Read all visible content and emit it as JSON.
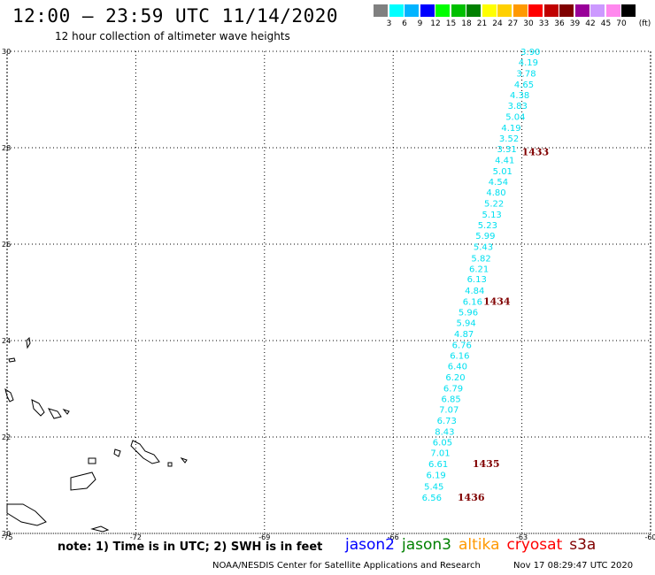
{
  "title": "12:00 — 23:59 UTC 11/14/2020",
  "subtitle": "12 hour collection of altimeter wave heights",
  "legend": {
    "unit": "(ft)",
    "bins": [
      {
        "label": "3",
        "color": "#808080"
      },
      {
        "label": "6",
        "color": "#00ffff"
      },
      {
        "label": "9",
        "color": "#00b4ff"
      },
      {
        "label": "12",
        "color": "#0000ff"
      },
      {
        "label": "15",
        "color": "#00ff00"
      },
      {
        "label": "18",
        "color": "#00c000"
      },
      {
        "label": "21",
        "color": "#008000"
      },
      {
        "label": "24",
        "color": "#ffff00"
      },
      {
        "label": "27",
        "color": "#ffd000"
      },
      {
        "label": "30",
        "color": "#ff9900"
      },
      {
        "label": "33",
        "color": "#ff0000"
      },
      {
        "label": "36",
        "color": "#c00000"
      },
      {
        "label": "39",
        "color": "#800000"
      },
      {
        "label": "42",
        "color": "#990099"
      },
      {
        "label": "45",
        "color": "#cc99ff"
      },
      {
        "label": "70",
        "color": "#ff88ee"
      },
      {
        "label": "",
        "color": "#000000"
      }
    ]
  },
  "chart_data": {
    "type": "scatter",
    "xlim": [
      -75,
      -60
    ],
    "ylim": [
      20,
      30
    ],
    "xticks": [
      "-75",
      "-72",
      "-69",
      "-66",
      "-63",
      "-60"
    ],
    "yticks": [
      "20",
      "22",
      "24",
      "26",
      "28",
      "30"
    ],
    "grid": true,
    "point_color": "#00e0f0",
    "time_color": "#800000",
    "points": [
      {
        "lon": -62.8,
        "lat": 30.0,
        "v": "3.90"
      },
      {
        "lon": -62.85,
        "lat": 29.78,
        "v": "4.19"
      },
      {
        "lon": -62.9,
        "lat": 29.55,
        "v": "3.78"
      },
      {
        "lon": -62.95,
        "lat": 29.32,
        "v": "4.65"
      },
      {
        "lon": -63.05,
        "lat": 29.1,
        "v": "4.38"
      },
      {
        "lon": -63.1,
        "lat": 28.88,
        "v": "3.83"
      },
      {
        "lon": -63.15,
        "lat": 28.65,
        "v": "5.04"
      },
      {
        "lon": -63.25,
        "lat": 28.42,
        "v": "4.19"
      },
      {
        "lon": -63.3,
        "lat": 28.2,
        "v": "3.52"
      },
      {
        "lon": -63.35,
        "lat": 27.98,
        "v": "3.31"
      },
      {
        "lon": -63.4,
        "lat": 27.75,
        "v": "4.41"
      },
      {
        "lon": -63.45,
        "lat": 27.52,
        "v": "5.01"
      },
      {
        "lon": -63.55,
        "lat": 27.3,
        "v": "4.54"
      },
      {
        "lon": -63.6,
        "lat": 27.08,
        "v": "4.80"
      },
      {
        "lon": -63.65,
        "lat": 26.85,
        "v": "5.22"
      },
      {
        "lon": -63.7,
        "lat": 26.62,
        "v": "5.13"
      },
      {
        "lon": -63.8,
        "lat": 26.4,
        "v": "5.23"
      },
      {
        "lon": -63.85,
        "lat": 26.18,
        "v": "5.99"
      },
      {
        "lon": -63.9,
        "lat": 25.95,
        "v": "5.43"
      },
      {
        "lon": -63.95,
        "lat": 25.72,
        "v": "5.82"
      },
      {
        "lon": -64.0,
        "lat": 25.5,
        "v": "6.21"
      },
      {
        "lon": -64.05,
        "lat": 25.28,
        "v": "6.13"
      },
      {
        "lon": -64.1,
        "lat": 25.05,
        "v": "4.84"
      },
      {
        "lon": -64.15,
        "lat": 24.82,
        "v": "6.16"
      },
      {
        "lon": -64.25,
        "lat": 24.6,
        "v": "5.96"
      },
      {
        "lon": -64.3,
        "lat": 24.38,
        "v": "5.94"
      },
      {
        "lon": -64.35,
        "lat": 24.15,
        "v": "4.87"
      },
      {
        "lon": -64.4,
        "lat": 23.92,
        "v": "6.76"
      },
      {
        "lon": -64.45,
        "lat": 23.7,
        "v": "6.16"
      },
      {
        "lon": -64.5,
        "lat": 23.48,
        "v": "6.40"
      },
      {
        "lon": -64.55,
        "lat": 23.25,
        "v": "6.20"
      },
      {
        "lon": -64.6,
        "lat": 23.02,
        "v": "6.79"
      },
      {
        "lon": -64.65,
        "lat": 22.8,
        "v": "6.85"
      },
      {
        "lon": -64.7,
        "lat": 22.58,
        "v": "7.07"
      },
      {
        "lon": -64.75,
        "lat": 22.35,
        "v": "6.73"
      },
      {
        "lon": -64.8,
        "lat": 22.12,
        "v": "8.43"
      },
      {
        "lon": -64.85,
        "lat": 21.9,
        "v": "6.05"
      },
      {
        "lon": -64.9,
        "lat": 21.68,
        "v": "7.01"
      },
      {
        "lon": -64.95,
        "lat": 21.45,
        "v": "6.61"
      },
      {
        "lon": -65.0,
        "lat": 21.22,
        "v": "6.19"
      },
      {
        "lon": -65.05,
        "lat": 20.98,
        "v": "5.45"
      },
      {
        "lon": -65.1,
        "lat": 20.75,
        "v": "6.56"
      }
    ],
    "time_labels": [
      {
        "lon": -63.0,
        "lat": 27.92,
        "text": "1433"
      },
      {
        "lon": -63.9,
        "lat": 24.82,
        "text": "1434"
      },
      {
        "lon": -64.15,
        "lat": 21.45,
        "text": "1435"
      },
      {
        "lon": -64.5,
        "lat": 20.75,
        "text": "1436"
      }
    ]
  },
  "note": "note:  1) Time is in UTC;  2) SWH is in feet",
  "satellites": [
    {
      "name": "jason2",
      "color": "#0000ff"
    },
    {
      "name": "jason3",
      "color": "#008000"
    },
    {
      "name": "altika",
      "color": "#ff9900"
    },
    {
      "name": "cryosat",
      "color": "#ff0000"
    },
    {
      "name": "s3a",
      "color": "#800000"
    }
  ],
  "credit": "NOAA/NESDIS Center for Satellite Applications and Research",
  "timestamp": "Nov 17 08:29:47 UTC 2020"
}
